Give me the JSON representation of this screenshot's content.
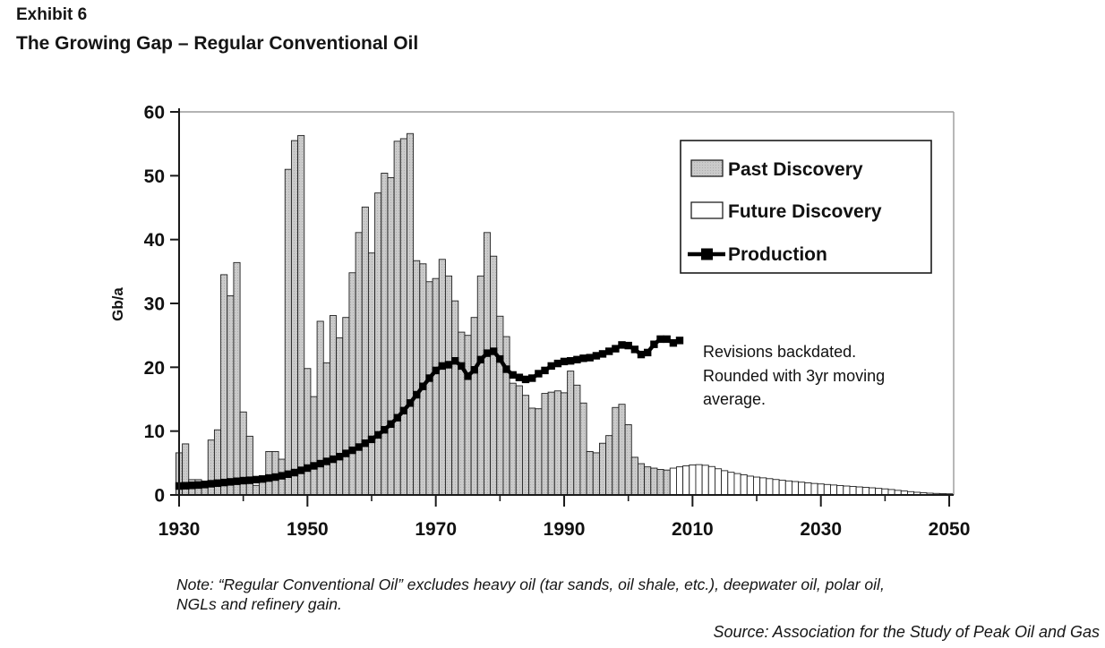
{
  "header": {
    "exhibit": "Exhibit 6",
    "title": "The Growing Gap – Regular Conventional Oil"
  },
  "chart_data": {
    "type": "bar",
    "title": "The Growing Gap – Regular Conventional Oil",
    "xlabel": "",
    "ylabel": "Gb/a",
    "ylim": [
      0,
      60
    ],
    "xlim": [
      1929.5,
      2050.5
    ],
    "grid": "off",
    "y_ticks": [
      0,
      10,
      20,
      30,
      40,
      50,
      60
    ],
    "x_ticks_major": [
      1930,
      1950,
      1970,
      1990,
      2010,
      2030,
      2050
    ],
    "x_ticks_minor": [
      1940,
      1960,
      1980,
      2000,
      2020,
      2040
    ],
    "legend": {
      "position": "top-right",
      "entries": [
        "Past Discovery",
        "Future Discovery",
        "Production"
      ]
    },
    "annotation": {
      "lines": [
        "Revisions backdated.",
        "Rounded with 3yr moving",
        "average."
      ]
    },
    "series": [
      {
        "name": "Past Discovery",
        "type": "bar",
        "color": "#c9c9c9",
        "start_year": 1930,
        "values": [
          6.6,
          8.0,
          2.4,
          2.4,
          1.1,
          8.6,
          10.2,
          34.5,
          31.2,
          36.4,
          13.0,
          9.2,
          1.5,
          2.2,
          6.8,
          6.8,
          5.6,
          51.0,
          55.5,
          56.3,
          19.8,
          15.4,
          27.2,
          20.7,
          28.1,
          24.6,
          27.8,
          34.8,
          41.1,
          45.1,
          37.9,
          47.3,
          50.4,
          49.7,
          55.4,
          55.8,
          56.6,
          36.7,
          36.2,
          33.4,
          33.9,
          36.9,
          34.3,
          30.4,
          25.5,
          25.0,
          27.8,
          34.3,
          41.1,
          37.4,
          28.0,
          24.8,
          17.5,
          17.1,
          15.6,
          13.6,
          13.5,
          15.9,
          16.1,
          16.3,
          16.0,
          19.4,
          17.2,
          14.4,
          6.8,
          6.6,
          8.1,
          9.3,
          13.7,
          14.2,
          11.0,
          5.9,
          4.9,
          4.4,
          4.2,
          4.0,
          3.9
        ]
      },
      {
        "name": "Future Discovery",
        "type": "bar",
        "color": "#ffffff",
        "start_year": 2007,
        "values": [
          4.2,
          4.4,
          4.55,
          4.7,
          4.75,
          4.65,
          4.45,
          4.1,
          3.8,
          3.55,
          3.35,
          3.15,
          2.95,
          2.8,
          2.68,
          2.55,
          2.42,
          2.3,
          2.2,
          2.1,
          2.0,
          1.9,
          1.8,
          1.72,
          1.64,
          1.56,
          1.48,
          1.4,
          1.33,
          1.26,
          1.19,
          1.12,
          1.03,
          0.95,
          0.85,
          0.72,
          0.62,
          0.52,
          0.42,
          0.34,
          0.28,
          0.24,
          0.2,
          0.18
        ]
      },
      {
        "name": "Production",
        "type": "line",
        "color": "#000000",
        "start_year": 1930,
        "values": [
          1.4,
          1.45,
          1.5,
          1.55,
          1.65,
          1.75,
          1.85,
          1.95,
          2.05,
          2.15,
          2.25,
          2.3,
          2.4,
          2.5,
          2.65,
          2.8,
          3.0,
          3.25,
          3.5,
          3.85,
          4.2,
          4.55,
          4.9,
          5.25,
          5.6,
          6.0,
          6.5,
          7.0,
          7.5,
          8.1,
          8.7,
          9.4,
          10.2,
          11.1,
          12.1,
          13.2,
          14.4,
          15.7,
          17.0,
          18.3,
          19.5,
          20.2,
          20.4,
          21.0,
          20.2,
          18.6,
          19.6,
          21.2,
          22.2,
          22.5,
          21.3,
          19.7,
          18.8,
          18.4,
          18.1,
          18.3,
          19.0,
          19.5,
          20.2,
          20.6,
          20.9,
          21.0,
          21.2,
          21.4,
          21.5,
          21.8,
          22.1,
          22.5,
          22.9,
          23.5,
          23.4,
          22.8,
          22.0,
          22.3,
          23.6,
          24.4,
          24.4,
          23.8,
          24.2
        ]
      }
    ]
  },
  "note": {
    "line1": "Note:  “Regular Conventional Oil” excludes heavy oil (tar sands, oil shale, etc.), deepwater oil, polar oil,",
    "line2": "NGLs and refinery gain."
  },
  "source": {
    "text": "Source:  Association for the Study of Peak Oil and Gas"
  },
  "colors": {
    "past_bar_fill": "#c9c9c9",
    "future_bar_fill": "#ffffff",
    "bar_outline": "#1f1f1f",
    "production_line": "#000000",
    "frame_light": "#9a9a9a",
    "axis_dark": "#1a1a1a",
    "text": "#151515"
  }
}
